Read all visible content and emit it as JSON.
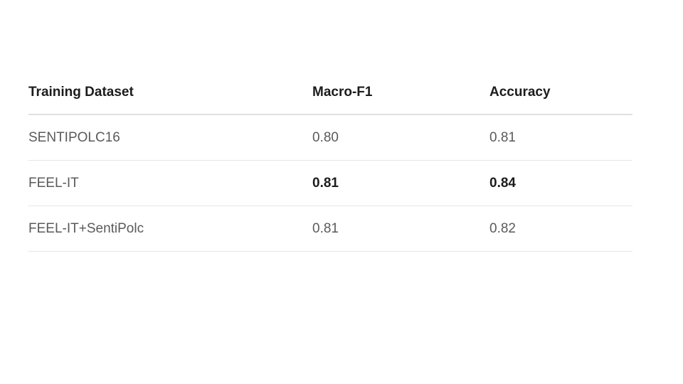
{
  "table": {
    "headers": [
      "Training Dataset",
      "Macro-F1",
      "Accuracy"
    ],
    "rows": [
      {
        "dataset": "SENTIPOLC16",
        "macro_f1": "0.80",
        "accuracy": "0.81",
        "bold": false
      },
      {
        "dataset": "FEEL-IT",
        "macro_f1": "0.81",
        "accuracy": "0.84",
        "bold": true
      },
      {
        "dataset": "FEEL-IT+SentiPolc",
        "macro_f1": "0.81",
        "accuracy": "0.82",
        "bold": false
      }
    ]
  },
  "colors": {
    "text_dark": "#1c1c1c",
    "text_muted": "#5a5a5a",
    "divider": "#e0e0e0",
    "background": "#ffffff"
  }
}
